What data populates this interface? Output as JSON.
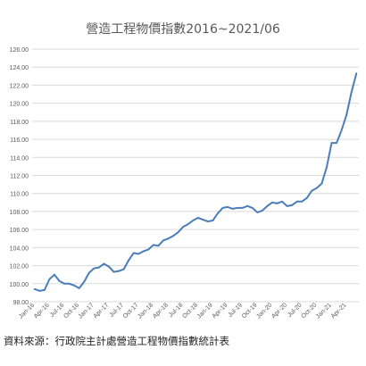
{
  "chart_data": {
    "type": "line",
    "title": "營造工程物價指數2016~2021/06",
    "xlabel": "",
    "ylabel": "",
    "ylim": [
      98,
      126
    ],
    "yticks": [
      98,
      100,
      102,
      104,
      106,
      108,
      110,
      112,
      114,
      116,
      118,
      120,
      122,
      124,
      126
    ],
    "ytick_labels": [
      "98.00",
      "100.00",
      "102.00",
      "104.00",
      "106.00",
      "108.00",
      "110.00",
      "112.00",
      "114.00",
      "116.00",
      "118.00",
      "120.00",
      "122.00",
      "124.00",
      "126.00"
    ],
    "grid": true,
    "legend": "none",
    "line_color": "#4a7ebb",
    "x_tick_labels": [
      "Jan-16",
      "Apr-16",
      "Jul-16",
      "Oct-16",
      "Jan-17",
      "Apr-17",
      "Jul-17",
      "Oct-17",
      "Jan-18",
      "Apr-18",
      "Jul-18",
      "Oct-18",
      "Jan-19",
      "Apr-19",
      "Jul-19",
      "Oct-19",
      "Jan-20",
      "Apr-20",
      "Jul-20",
      "Oct-20",
      "Jan-21",
      "Apr-21"
    ],
    "x": [
      "2016-01",
      "2016-02",
      "2016-03",
      "2016-04",
      "2016-05",
      "2016-06",
      "2016-07",
      "2016-08",
      "2016-09",
      "2016-10",
      "2016-11",
      "2016-12",
      "2017-01",
      "2017-02",
      "2017-03",
      "2017-04",
      "2017-05",
      "2017-06",
      "2017-07",
      "2017-08",
      "2017-09",
      "2017-10",
      "2017-11",
      "2017-12",
      "2018-01",
      "2018-02",
      "2018-03",
      "2018-04",
      "2018-05",
      "2018-06",
      "2018-07",
      "2018-08",
      "2018-09",
      "2018-10",
      "2018-11",
      "2018-12",
      "2019-01",
      "2019-02",
      "2019-03",
      "2019-04",
      "2019-05",
      "2019-06",
      "2019-07",
      "2019-08",
      "2019-09",
      "2019-10",
      "2019-11",
      "2019-12",
      "2020-01",
      "2020-02",
      "2020-03",
      "2020-04",
      "2020-05",
      "2020-06",
      "2020-07",
      "2020-08",
      "2020-09",
      "2020-10",
      "2020-11",
      "2020-12",
      "2021-01",
      "2021-02",
      "2021-03",
      "2021-04",
      "2021-05",
      "2021-06"
    ],
    "series": [
      {
        "values": [
          99.4,
          99.2,
          99.3,
          100.5,
          101.0,
          100.3,
          100.0,
          100.0,
          99.8,
          99.5,
          100.2,
          101.2,
          101.7,
          101.8,
          102.2,
          101.9,
          101.3,
          101.4,
          101.6,
          102.6,
          103.4,
          103.3,
          103.6,
          103.8,
          104.3,
          104.2,
          104.8,
          105.0,
          105.3,
          105.7,
          106.3,
          106.6,
          107.0,
          107.3,
          107.1,
          106.9,
          107.0,
          107.8,
          108.4,
          108.5,
          108.3,
          108.4,
          108.4,
          108.6,
          108.4,
          107.9,
          108.1,
          108.6,
          109.0,
          108.9,
          109.1,
          108.6,
          108.7,
          109.1,
          109.1,
          109.5,
          110.3,
          110.6,
          111.1,
          112.9,
          115.6,
          115.6,
          117.0,
          118.7,
          121.2,
          123.3
        ]
      }
    ]
  },
  "source_note": "資料來源：行政院主計處營造工程物價指數統計表"
}
